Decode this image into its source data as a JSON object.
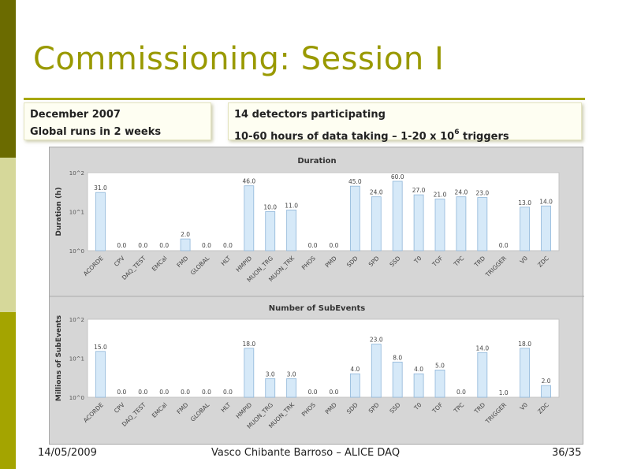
{
  "slide": {
    "title": "Commissioning: Session I",
    "box_left": {
      "line1": "December 2007",
      "line2": "Global runs in 2 weeks"
    },
    "box_right": {
      "line1": "14 detectors participating",
      "line2_prefix": "10-60 hours of data taking – 1-20 x 10",
      "line2_sup": "6",
      "line2_suffix": " triggers"
    },
    "footer": {
      "date": "14/05/2009",
      "author": "Vasco Chibante Barroso – ALICE DAQ",
      "page": "36/35"
    }
  },
  "colors": {
    "accent": "#999900",
    "bar_fill": "#d6e9f8",
    "bar_stroke": "#8fb6d9",
    "panel_bg": "#d6d6d6"
  },
  "chart_data": [
    {
      "type": "bar",
      "title": "Duration",
      "ylabel": "Duration (h)",
      "yscale": "log",
      "ylim": [
        1,
        100
      ],
      "yticks": [
        "10^0",
        "10^1",
        "10^2"
      ],
      "categories": [
        "ACORDE",
        "CPV",
        "DAQ_TEST",
        "EMCal",
        "FMD",
        "GLOBAL",
        "HLT",
        "HMPID",
        "MUON_TRG",
        "MUON_TRK",
        "PHOS",
        "PMD",
        "SDD",
        "SPD",
        "SSD",
        "T0",
        "TOF",
        "TPC",
        "TRD",
        "TRIGGER",
        "V0",
        "ZDC"
      ],
      "values": [
        31.0,
        0.0,
        0.0,
        0.0,
        2.0,
        0.0,
        0.0,
        46.0,
        10.0,
        11.0,
        0.0,
        0.0,
        45.0,
        24.0,
        60.0,
        27.0,
        21.0,
        24.0,
        23.0,
        0.0,
        13.0,
        14.0
      ],
      "labels": [
        "31.0",
        "0.0",
        "0.0",
        "0.0",
        "2.0",
        "0.0",
        "0.0",
        "46.0",
        "10.0",
        "11.0",
        "0.0",
        "0.0",
        "45.0",
        "24.0",
        "60.0",
        "27.0",
        "21.0",
        "24.0",
        "23.0",
        "0.0",
        "13.0",
        "14.0"
      ]
    },
    {
      "type": "bar",
      "title": "Number of SubEvents",
      "ylabel": "Millions of SubEvents",
      "yscale": "log",
      "ylim": [
        1,
        100
      ],
      "yticks": [
        "10^0",
        "10^1",
        "10^2"
      ],
      "categories": [
        "ACORDE",
        "CPV",
        "DAQ_TEST",
        "EMCal",
        "FMD",
        "GLOBAL",
        "HLT",
        "HMPID",
        "MUON_TRG",
        "MUON_TRK",
        "PHOS",
        "PMD",
        "SDD",
        "SPD",
        "SSD",
        "T0",
        "TOF",
        "TPC",
        "TRD",
        "TRIGGER",
        "V0",
        "ZDC"
      ],
      "values": [
        15.0,
        0.0,
        0.0,
        0.0,
        0.0,
        0.0,
        0.0,
        18.0,
        3.0,
        3.0,
        0.0,
        0.0,
        4.0,
        23.0,
        8.0,
        4.0,
        5.0,
        0.0,
        14.0,
        1.0,
        18.0,
        2.0
      ],
      "labels": [
        "15.0",
        "0.0",
        "0.0",
        "0.0",
        "0.0",
        "0.0",
        "0.0",
        "18.0",
        "3.0",
        "3.0",
        "0.0",
        "0.0",
        "4.0",
        "23.0",
        "8.0",
        "4.0",
        "5.0",
        "0.0",
        "14.0",
        "1.0",
        "18.0",
        "2.0"
      ]
    }
  ]
}
